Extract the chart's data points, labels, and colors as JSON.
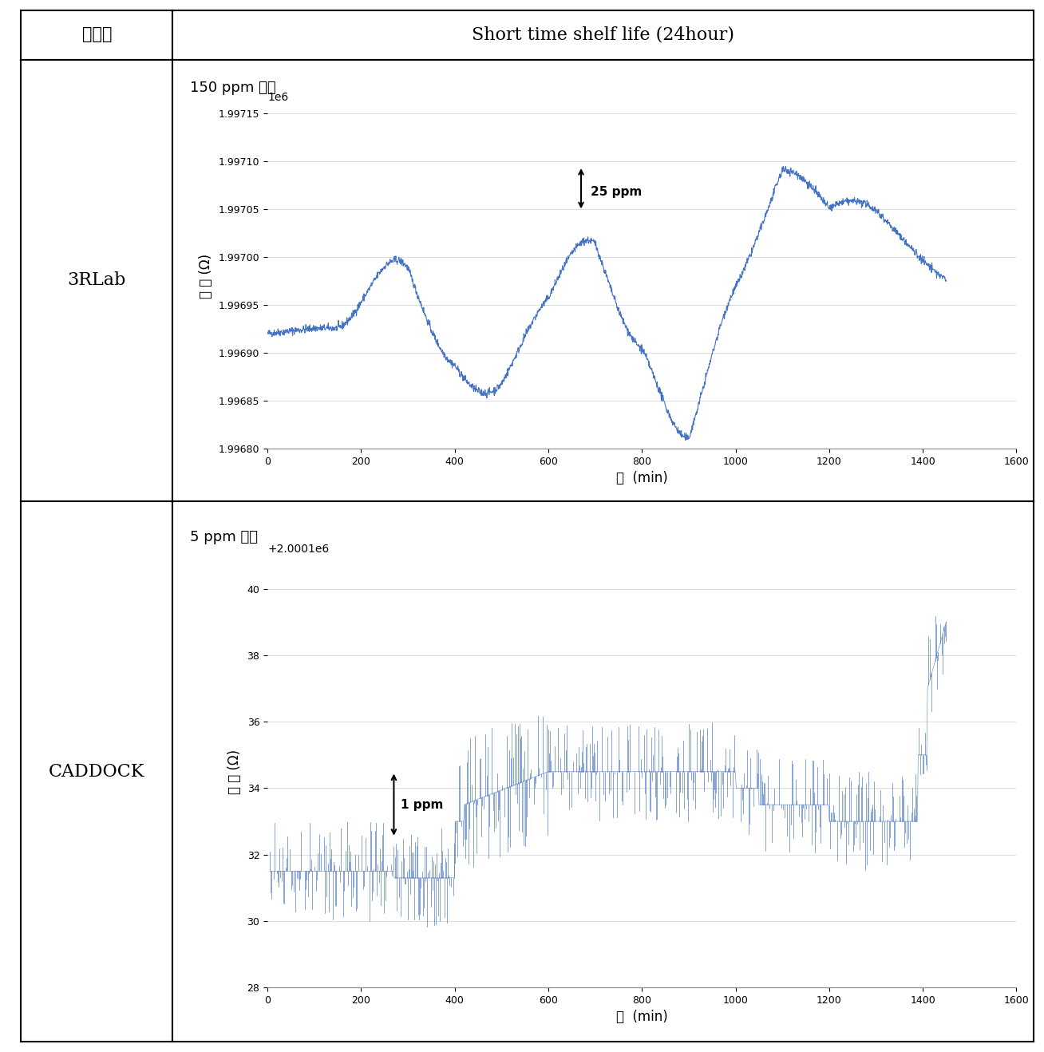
{
  "title_col1": "회사명",
  "title_col2": "Short time shelf life (24hour)",
  "row1_company": "3RLab",
  "row2_company": "CADDOCK",
  "plot1_subtitle": "150 ppm 이내",
  "plot2_subtitle": "5 ppm 이내",
  "plot1_annotation": "25 ppm",
  "plot2_annotation": "1 ppm",
  "xlabel": "분  (min)",
  "ylabel": "저 항 (Ω)",
  "plot1_ylim": [
    1996800,
    1997160
  ],
  "plot1_xlim": [
    0,
    1600
  ],
  "plot2_ylim": [
    2000128,
    2000141
  ],
  "plot2_xlim": [
    0,
    1600
  ],
  "plot1_yticks": [
    1996800,
    1996850,
    1996900,
    1996950,
    1997000,
    1997050,
    1997100,
    1997150
  ],
  "plot1_xticks": [
    0,
    200,
    400,
    600,
    800,
    1000,
    1200,
    1400,
    1600
  ],
  "plot2_yticks": [
    2000128,
    2000130,
    2000132,
    2000134,
    2000136,
    2000138,
    2000140
  ],
  "plot2_xticks": [
    0,
    200,
    400,
    600,
    800,
    1000,
    1200,
    1400,
    1600
  ],
  "line_color": "#4472C4",
  "background_color": "#ffffff",
  "grid_color": "#d0d0d0",
  "table_line_color": "#000000",
  "font_color": "#000000"
}
